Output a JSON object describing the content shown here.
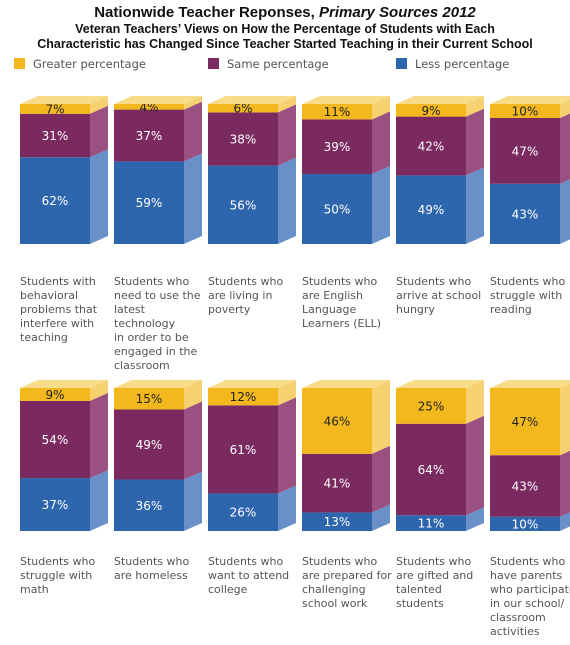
{
  "header": {
    "title_main": "Nationwide Teacher Reponses,",
    "title_italic": "Primary Sources 2012",
    "subtitle_line1": "Veteran Teachers’ Views on How the Percentage of Students with Each",
    "subtitle_line2": "Characteristic has Changed Since Teacher Started Teaching in their Current School"
  },
  "colors": {
    "greater_front": "#f2b81e",
    "greater_side": "#f7d070",
    "greater_top": "#f9dc8a",
    "same_front": "#7b2a5f",
    "same_side": "#9a5080",
    "less_front": "#2e66ad",
    "less_side": "#6a90c9"
  },
  "chart_data": {
    "type": "bar",
    "stacked": true,
    "legend_position": "top",
    "legend": [
      "Greater percentage",
      "Same percentage",
      "Less percentage"
    ],
    "categories": [
      "Students with behavioral problems that interfere with teaching",
      "Students who need to use the latest technology in order to be engaged in the classroom",
      "Students who are living in poverty",
      "Students who are English Language Learners (ELL)",
      "Students who arrive at school hungry",
      "Students who struggle with reading",
      "Students who struggle with math",
      "Students who are homeless",
      "Students who want to attend college",
      "Students who are prepared for challenging school work",
      "Students who are gifted and talented students",
      "Students who have parents who participate in our school/ classroom activities"
    ],
    "category_lines": [
      [
        "Students with",
        "behavioral",
        "problems that",
        "interfere with",
        "teaching"
      ],
      [
        "Students who",
        "need to use the",
        "latest technology",
        "in order to be",
        "engaged in the",
        "classroom"
      ],
      [
        "Students who",
        "are living in",
        "poverty"
      ],
      [
        "Students who",
        "are English",
        "Language",
        "Learners (ELL)"
      ],
      [
        "Students who",
        "arrive at school",
        "hungry"
      ],
      [
        "Students who",
        "struggle with",
        "reading"
      ],
      [
        "Students who",
        "struggle with",
        "math"
      ],
      [
        "Students who",
        "are homeless"
      ],
      [
        "Students who",
        "want to attend",
        "college"
      ],
      [
        "Students who",
        "are prepared for",
        "challenging",
        "school work"
      ],
      [
        "Students who",
        "are gifted and",
        "talented",
        "students"
      ],
      [
        "Students who",
        "have parents",
        "who participate",
        "in our school/",
        "classroom",
        "activities"
      ]
    ],
    "series": [
      {
        "name": "Greater percentage",
        "values": [
          7,
          4,
          6,
          11,
          9,
          10,
          9,
          15,
          12,
          46,
          25,
          47
        ],
        "labels": [
          "7%",
          "4%",
          "6%",
          "11%",
          "9%",
          "10%",
          "9%",
          "15%",
          "12%",
          "46%",
          "25%",
          "47%"
        ]
      },
      {
        "name": "Same percentage",
        "values": [
          31,
          37,
          38,
          39,
          42,
          47,
          54,
          49,
          61,
          41,
          64,
          43
        ],
        "labels": [
          "31%",
          "37%",
          "38%",
          "39%",
          "42%",
          "47%",
          "54%",
          "49%",
          "61%",
          "41%",
          "64%",
          "43%"
        ]
      },
      {
        "name": "Less percentage",
        "values": [
          62,
          59,
          56,
          50,
          49,
          43,
          37,
          36,
          26,
          13,
          11,
          10
        ],
        "labels": [
          "62%",
          "59%",
          "56%",
          "50%",
          "49%",
          "43%",
          "37%",
          "36%",
          "26%",
          "13%",
          "11%",
          "10%"
        ]
      }
    ],
    "ylim": [
      0,
      100
    ]
  }
}
